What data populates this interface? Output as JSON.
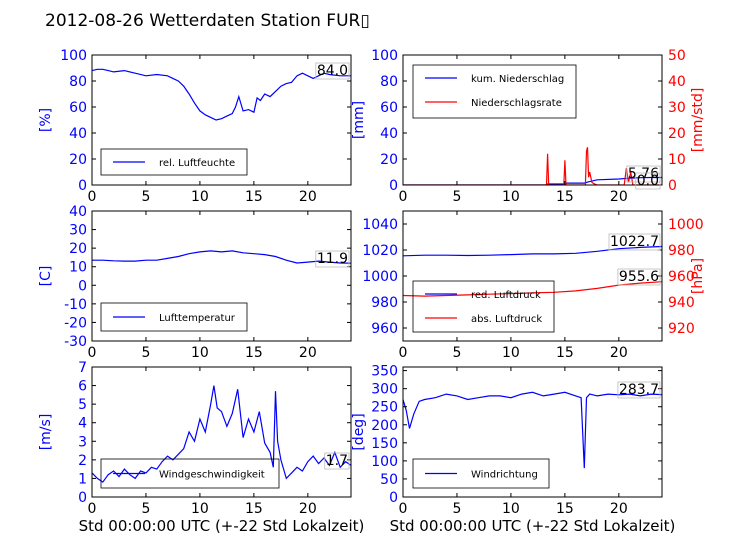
{
  "title": "2012-08-26 Wetterdaten Station FUR▯",
  "colors": {
    "blue": "#0000ff",
    "red": "#ff0000",
    "axis": "#000000"
  },
  "chart_data": [
    {
      "id": "humidity",
      "type": "line",
      "ylabel": "[%]",
      "xlim": [
        0,
        24
      ],
      "ylim": [
        0,
        100
      ],
      "xticks": [
        0,
        5,
        10,
        15,
        20
      ],
      "yticks": [
        0,
        20,
        40,
        60,
        80,
        100
      ],
      "legend": "bottom-left",
      "series": [
        {
          "name": "rel. Luftfeuchte",
          "color": "#0000ff",
          "x": [
            0,
            0.5,
            1,
            1.5,
            2,
            3,
            4,
            5,
            6,
            7,
            7.5,
            8,
            8.5,
            9,
            9.5,
            10,
            10.5,
            11,
            11.5,
            12,
            12.5,
            13,
            13.3,
            13.6,
            14,
            14.5,
            15,
            15.3,
            15.6,
            16,
            16.5,
            17,
            17.5,
            18,
            18.5,
            19,
            19.5,
            20,
            20.5,
            21,
            21.5,
            22,
            23,
            24
          ],
          "y": [
            88,
            89,
            89,
            88,
            87,
            88,
            86,
            84,
            85,
            84,
            82,
            80,
            76,
            70,
            63,
            57,
            54,
            52,
            50,
            51,
            53,
            55,
            60,
            68,
            57,
            58,
            56,
            67,
            65,
            70,
            68,
            72,
            76,
            78,
            79,
            84,
            86,
            84,
            82,
            84,
            86,
            85,
            84,
            84
          ]
        }
      ],
      "annotation": "84.0"
    },
    {
      "id": "precip",
      "type": "line",
      "ylabel": "[mm]",
      "y2label": "[mm/std]",
      "xlim": [
        0,
        24
      ],
      "ylim": [
        0,
        100
      ],
      "y2lim": [
        0,
        50
      ],
      "xticks": [
        0,
        5,
        10,
        15,
        20
      ],
      "yticks": [
        0,
        20,
        40,
        60,
        80,
        100
      ],
      "y2ticks": [
        0,
        10,
        20,
        30,
        40,
        50
      ],
      "legend": "top-left",
      "series": [
        {
          "name": "kum. Niederschlag",
          "color": "#0000ff",
          "axis": "left",
          "x": [
            0,
            13.2,
            13.4,
            15,
            15.2,
            16.8,
            17.2,
            17.5,
            18,
            20,
            21,
            22,
            23,
            24
          ],
          "y": [
            0,
            0,
            0.8,
            0.8,
            1.5,
            1.5,
            2.5,
            3.0,
            4.0,
            4.6,
            5.2,
            5.6,
            5.76,
            5.76
          ]
        },
        {
          "name": "Niederschlagsrate",
          "color": "#ff0000",
          "axis": "right",
          "x": [
            0,
            13.3,
            13.4,
            13.5,
            14.9,
            15.0,
            15.1,
            16.9,
            17.0,
            17.1,
            17.2,
            17.3,
            17.5,
            17.7,
            18,
            20.5,
            20.7,
            20.9,
            21.1,
            21.3,
            24
          ],
          "y": [
            0,
            0,
            12,
            0,
            0,
            9.5,
            0,
            0,
            13,
            14.5,
            3,
            5,
            1,
            0.5,
            0,
            0,
            6.5,
            1,
            5,
            0,
            0
          ]
        }
      ],
      "annotations": [
        "5.76",
        "0.0"
      ]
    },
    {
      "id": "temperature",
      "type": "line",
      "ylabel": "[C]",
      "xlim": [
        0,
        24
      ],
      "ylim": [
        -30,
        40
      ],
      "xticks": [
        0,
        5,
        10,
        15,
        20
      ],
      "yticks": [
        -30,
        -20,
        -10,
        0,
        10,
        20,
        30,
        40
      ],
      "legend": "bottom-left",
      "series": [
        {
          "name": "Lufttemperatur",
          "color": "#0000ff",
          "x": [
            0,
            1,
            2,
            3,
            4,
            5,
            6,
            7,
            8,
            9,
            10,
            11,
            12,
            13,
            14,
            15,
            16,
            17,
            18,
            19,
            20,
            21,
            22,
            23,
            24
          ],
          "y": [
            13.5,
            13.5,
            13.2,
            13.0,
            13.0,
            13.5,
            13.5,
            14.5,
            15.5,
            17.0,
            18.0,
            18.5,
            18.0,
            18.5,
            17.5,
            17.0,
            16.5,
            15.5,
            13.5,
            12.0,
            12.5,
            13.0,
            12.5,
            12.0,
            11.9
          ]
        }
      ],
      "annotation": "11.9"
    },
    {
      "id": "pressure",
      "type": "line",
      "y2label": "[hPa]",
      "xlim": [
        0,
        24
      ],
      "ylim": [
        950,
        1050
      ],
      "y2lim": [
        910,
        1010
      ],
      "xticks": [
        0,
        5,
        10,
        15,
        20
      ],
      "yticks": [
        960,
        980,
        1000,
        1020,
        1040
      ],
      "y2ticks": [
        920,
        940,
        960,
        980,
        1000
      ],
      "legend": "bottom-left",
      "series": [
        {
          "name": "red. Luftdruck",
          "color": "#0000ff",
          "axis": "left",
          "x": [
            0,
            2,
            4,
            6,
            8,
            10,
            12,
            14,
            16,
            18,
            20,
            22,
            24
          ],
          "y": [
            1015.5,
            1016.0,
            1016.0,
            1015.8,
            1016.0,
            1016.5,
            1017.0,
            1017.0,
            1017.5,
            1019.0,
            1021.0,
            1022.0,
            1022.7
          ]
        },
        {
          "name": "abs. Luftdruck",
          "color": "#ff0000",
          "axis": "right",
          "x": [
            0,
            2,
            4,
            6,
            8,
            10,
            12,
            14,
            16,
            18,
            20,
            22,
            24
          ],
          "y": [
            945.0,
            944.5,
            945.0,
            945.5,
            946.0,
            946.5,
            947.0,
            947.5,
            948.5,
            950.5,
            953.0,
            954.5,
            955.6
          ]
        }
      ],
      "annotations": [
        "1022.7",
        "955.6"
      ]
    },
    {
      "id": "windspeed",
      "type": "line",
      "ylabel": "[m/s]",
      "xlabel": "Std 00:00:00 UTC (+-22 Std Lokalzeit)",
      "xlim": [
        0,
        24
      ],
      "ylim": [
        0,
        7
      ],
      "xticks": [
        0,
        5,
        10,
        15,
        20
      ],
      "yticks": [
        0,
        1,
        2,
        3,
        4,
        5,
        6,
        7
      ],
      "legend": "bottom-left",
      "series": [
        {
          "name": "Windgeschwindigkeit",
          "color": "#0000ff",
          "x": [
            0,
            0.5,
            1,
            1.5,
            2,
            2.5,
            3,
            3.5,
            4,
            4.5,
            5,
            5.5,
            6,
            6.5,
            7,
            7.5,
            8,
            8.5,
            9,
            9.5,
            10,
            10.5,
            11,
            11.3,
            11.6,
            12,
            12.5,
            13,
            13.5,
            14,
            14.5,
            15,
            15.5,
            16,
            16.5,
            16.8,
            17,
            17.2,
            17.5,
            18,
            18.5,
            19,
            19.5,
            20,
            20.5,
            21,
            21.5,
            22,
            22.5,
            23,
            23.5,
            24
          ],
          "y": [
            1.3,
            1.0,
            0.8,
            1.2,
            1.4,
            1.1,
            1.5,
            1.2,
            1.0,
            1.4,
            1.3,
            1.6,
            1.5,
            1.9,
            2.2,
            2.0,
            2.3,
            2.6,
            3.5,
            3.0,
            4.2,
            3.5,
            5.0,
            6.0,
            4.8,
            4.6,
            3.8,
            4.5,
            5.8,
            3.2,
            4.2,
            3.5,
            4.6,
            2.9,
            2.4,
            1.6,
            5.7,
            3.0,
            2.0,
            1.0,
            1.3,
            1.6,
            1.4,
            1.9,
            2.2,
            1.8,
            2.1,
            1.7,
            2.4,
            1.6,
            1.9,
            1.7
          ]
        }
      ],
      "annotation": "1.7"
    },
    {
      "id": "winddir",
      "type": "line",
      "ylabel": "[deg]",
      "xlabel": "Std 00:00:00 UTC (+-22 Std Lokalzeit)",
      "xlim": [
        0,
        24
      ],
      "ylim": [
        0,
        360
      ],
      "xticks": [
        0,
        5,
        10,
        15,
        20
      ],
      "yticks": [
        0,
        50,
        100,
        150,
        200,
        250,
        300,
        350
      ],
      "legend": "bottom-left",
      "series": [
        {
          "name": "Windrichtung",
          "color": "#0000ff",
          "x": [
            0,
            0.3,
            0.6,
            1,
            1.5,
            2,
            3,
            4,
            5,
            6,
            7,
            8,
            9,
            10,
            11,
            12,
            13,
            14,
            15,
            16,
            16.5,
            16.8,
            17.0,
            17.3,
            18,
            19,
            20,
            21,
            22,
            23,
            24
          ],
          "y": [
            270,
            240,
            190,
            230,
            265,
            270,
            275,
            285,
            280,
            270,
            275,
            280,
            280,
            275,
            285,
            290,
            280,
            285,
            290,
            280,
            275,
            80,
            275,
            285,
            280,
            285,
            283,
            285,
            280,
            285,
            283.7
          ]
        }
      ],
      "annotation": "283.7"
    }
  ]
}
